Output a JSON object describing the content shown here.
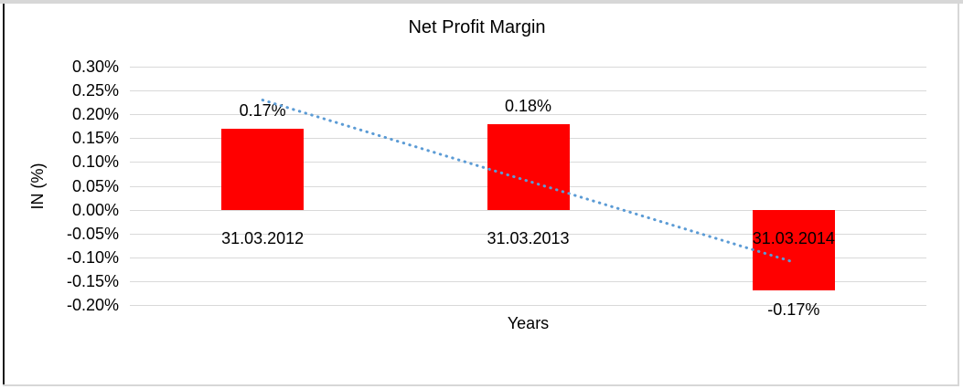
{
  "chart_data": {
    "type": "bar",
    "title": "Net Profit Margin",
    "xlabel": "Years",
    "ylabel": "IN (%)",
    "categories": [
      "31.03.2012",
      "31.03.2013",
      "31.03.2014"
    ],
    "values": [
      0.17,
      0.18,
      -0.17
    ],
    "data_labels": [
      "0.17%",
      "0.18%",
      "-0.17%"
    ],
    "ylim": [
      -0.2,
      0.3
    ],
    "ytick_step": 0.05,
    "ytick_labels": [
      "0.30%",
      "0.25%",
      "0.20%",
      "0.15%",
      "0.10%",
      "0.05%",
      "0.00%",
      "-0.05%",
      "-0.10%",
      "-0.15%",
      "-0.20%"
    ],
    "grid": true,
    "legend": "none",
    "colors": {
      "bar": "#ff0000",
      "trendline": "#5b9bd5",
      "gridline": "#d9d9d9",
      "text": "#000000",
      "frame_dark_border": "#1a1a1a",
      "frame_light_border": "#d7d7d7"
    },
    "trendline": {
      "type": "linear",
      "style": "dotted",
      "start_category_index": 0,
      "end_category_index": 2,
      "start_value": 0.23,
      "end_value": -0.11
    }
  }
}
